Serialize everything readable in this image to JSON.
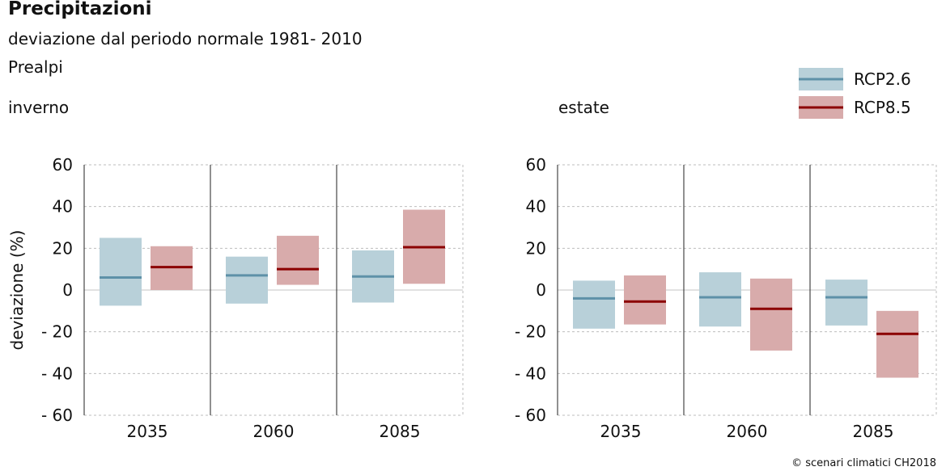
{
  "header": {
    "title": "Precipitazioni",
    "subtitle": "deviazione dal periodo normale 1981- 2010",
    "region": "Prealpi"
  },
  "footer": {
    "copyright": "© scenari climatici CH2018"
  },
  "colors": {
    "rcp26_fill": "#b8d0d9",
    "rcp26_line": "#5e91a8",
    "rcp85_fill": "#d8abab",
    "rcp85_line": "#8b0000"
  },
  "chart_data": {
    "type": "range-bar",
    "title": "Precipitazioni",
    "ylabel": "deviazione (%)",
    "ylim": [
      -60,
      60
    ],
    "yticks": [
      60,
      40,
      20,
      0,
      -20,
      -40,
      -60
    ],
    "ytick_labels": [
      "60",
      "40",
      "20",
      "0",
      "- 20",
      "- 40",
      "- 60"
    ],
    "categories": [
      "2035",
      "2060",
      "2085"
    ],
    "legend": [
      {
        "name": "RCP2.6",
        "key": "rcp26"
      },
      {
        "name": "RCP8.5",
        "key": "rcp85"
      }
    ],
    "panels": [
      {
        "label": "inverno",
        "series": [
          {
            "name": "RCP2.6",
            "key": "rcp26",
            "low": [
              -7.5,
              -6.5,
              -6
            ],
            "median": [
              6,
              7,
              6.5
            ],
            "high": [
              25,
              16,
              19
            ]
          },
          {
            "name": "RCP8.5",
            "key": "rcp85",
            "low": [
              0,
              2.5,
              3
            ],
            "median": [
              11,
              10,
              20.5
            ],
            "high": [
              21,
              26,
              38.5
            ]
          }
        ]
      },
      {
        "label": "estate",
        "series": [
          {
            "name": "RCP2.6",
            "key": "rcp26",
            "low": [
              -18.5,
              -17.5,
              -17
            ],
            "median": [
              -4,
              -3.5,
              -3.5
            ],
            "high": [
              4.5,
              8.5,
              5
            ]
          },
          {
            "name": "RCP8.5",
            "key": "rcp85",
            "low": [
              -16.5,
              -29,
              -42
            ],
            "median": [
              -5.5,
              -9,
              -21
            ],
            "high": [
              7,
              5.5,
              -10
            ]
          }
        ]
      }
    ]
  }
}
